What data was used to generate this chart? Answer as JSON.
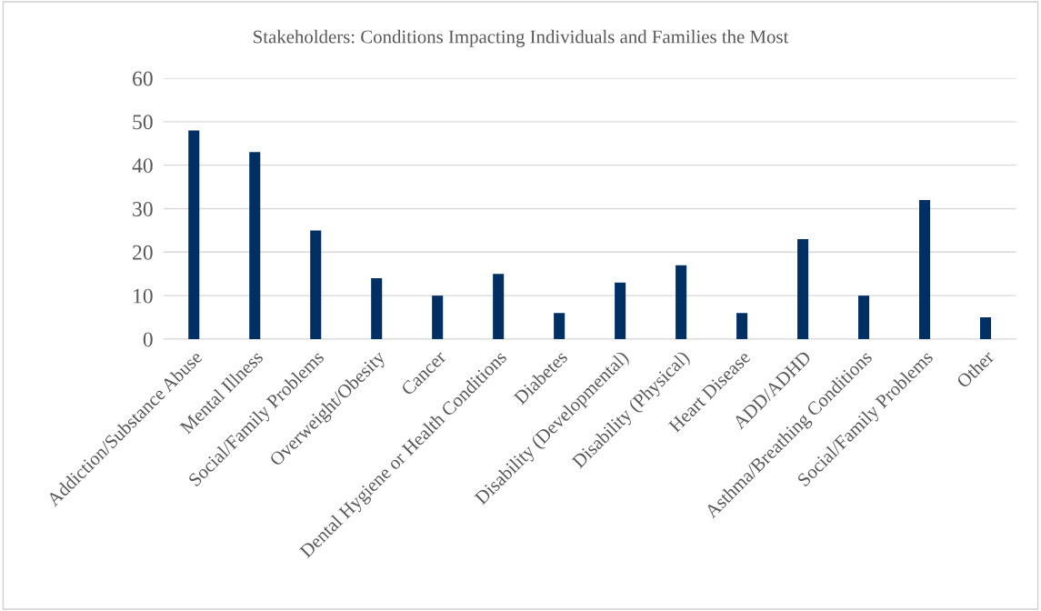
{
  "chart_data": {
    "type": "bar",
    "title": "Stakeholders: Conditions Impacting Individuals and Families the Most",
    "categories": [
      "Addiction/Substance Abuse",
      "Mental Illness",
      "Social/Family Problems",
      "Overweight/Obesity",
      "Cancer",
      "Dental Hygiene or Health Conditions",
      "Diabetes",
      "Disability (Developmental)",
      "Disability (Physical)",
      "Heart Disease",
      "ADD/ADHD",
      "Asthma/Breathing Conditions",
      "Social/Family Problems",
      "Other"
    ],
    "values": [
      48,
      43,
      25,
      14,
      10,
      15,
      6,
      13,
      17,
      6,
      23,
      10,
      32,
      5
    ],
    "color": "#002f63",
    "ylim": [
      0,
      60
    ],
    "yticks": [
      0,
      10,
      20,
      30,
      40,
      50,
      60
    ],
    "grid": "y",
    "legend": false
  }
}
